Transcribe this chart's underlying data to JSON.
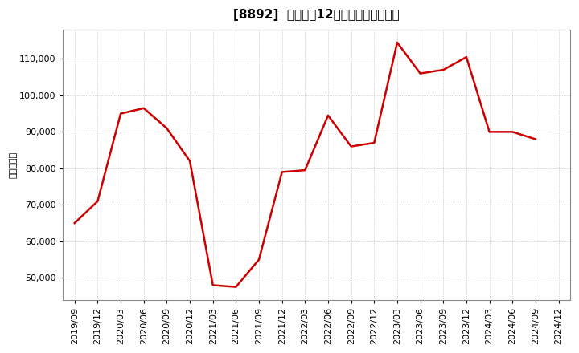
{
  "title": "[8892]  売上高の12か月移動合計の推移",
  "ylabel": "（百万円）",
  "line_color": "#cc0000",
  "background_color": "#ffffff",
  "plot_bg_color": "#ffffff",
  "grid_color": "#aaaaaa",
  "dates": [
    "2019/09",
    "2019/12",
    "2020/03",
    "2020/06",
    "2020/09",
    "2020/12",
    "2021/03",
    "2021/06",
    "2021/09",
    "2021/12",
    "2022/03",
    "2022/06",
    "2022/09",
    "2022/12",
    "2023/03",
    "2023/06",
    "2023/09",
    "2023/12",
    "2024/03",
    "2024/06",
    "2024/09",
    "2024/12"
  ],
  "values": [
    65000,
    71000,
    95000,
    96500,
    91000,
    82000,
    48000,
    47500,
    55000,
    79000,
    79500,
    94500,
    86000,
    87000,
    114500,
    106000,
    107000,
    110500,
    90000,
    90000,
    88000,
    null
  ],
  "ylim": [
    44000,
    118000
  ],
  "yticks": [
    50000,
    60000,
    70000,
    80000,
    90000,
    100000,
    110000
  ],
  "title_fontsize": 11,
  "tick_fontsize": 8,
  "ylabel_fontsize": 8,
  "linewidth": 1.8
}
